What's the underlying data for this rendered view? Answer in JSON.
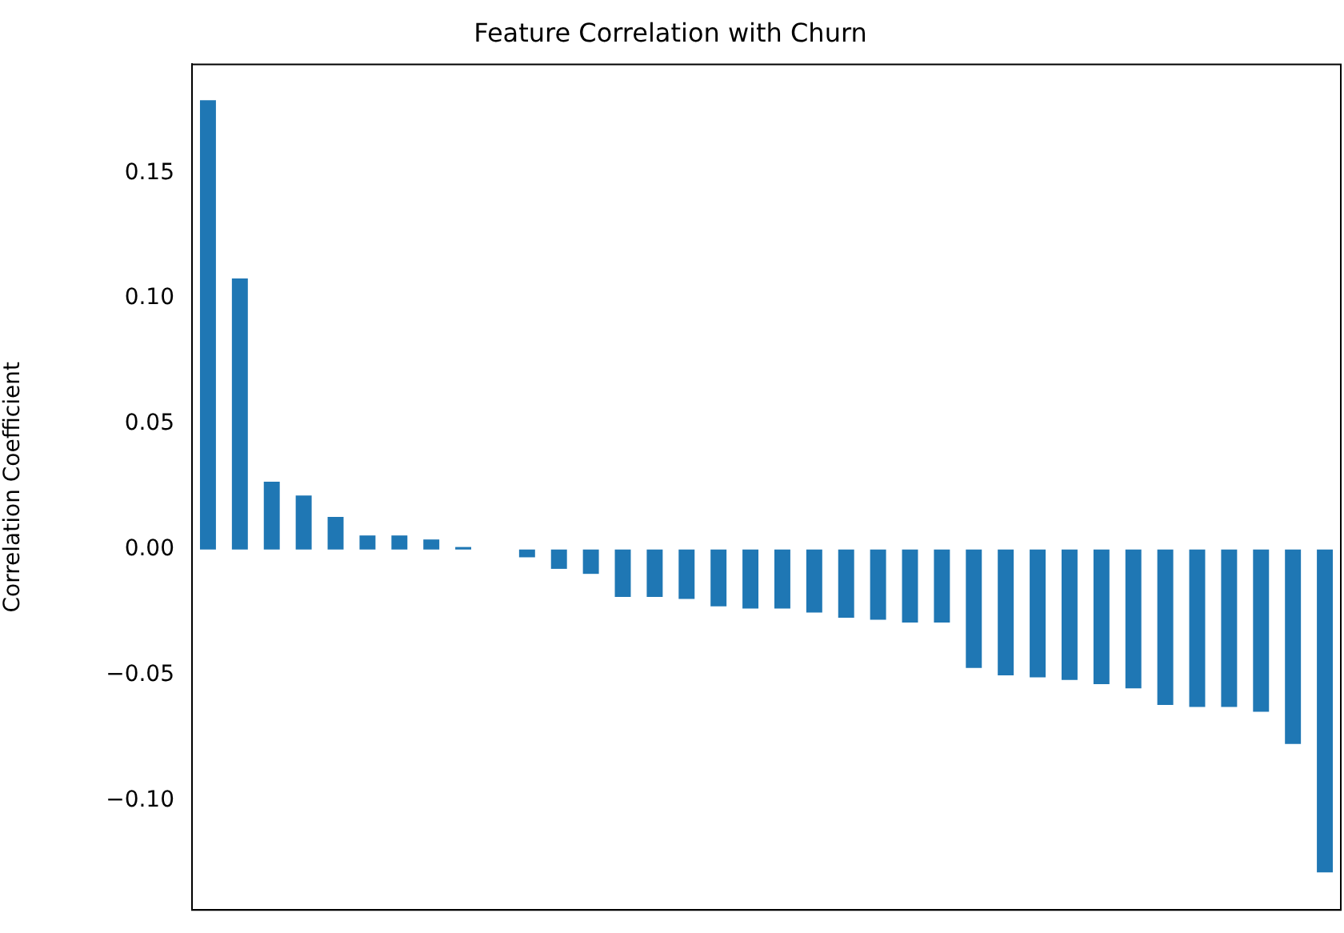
{
  "chart_data": {
    "type": "bar",
    "title": "Feature Correlation with Churn",
    "ylabel": "Correlation Coefficient",
    "categories": [
      null,
      null,
      null,
      null,
      null,
      null,
      null,
      null,
      null,
      null,
      null,
      null,
      null,
      null,
      null,
      null,
      null,
      null,
      null,
      null,
      null,
      null,
      null,
      null,
      null,
      null,
      null,
      null,
      null,
      null,
      null,
      null,
      null,
      null,
      null,
      null
    ],
    "values": [
      0.179,
      0.108,
      0.027,
      0.0215,
      0.013,
      0.0056,
      0.0056,
      0.004,
      0.001,
      0,
      -0.0031,
      -0.0077,
      -0.0097,
      -0.0189,
      -0.0189,
      -0.0197,
      -0.0226,
      -0.0235,
      -0.0235,
      -0.0251,
      -0.0272,
      -0.028,
      -0.0291,
      -0.0291,
      -0.0472,
      -0.0501,
      -0.0509,
      -0.052,
      -0.0536,
      -0.0553,
      -0.0619,
      -0.0627,
      -0.0627,
      -0.0646,
      -0.0775,
      -0.1286
    ],
    "color": "#1f77b4",
    "ylim": [
      -0.1436,
      0.1933
    ],
    "yticks": [
      {
        "value": -0.1,
        "label": "−0.10"
      },
      {
        "value": -0.05,
        "label": "−0.05"
      },
      {
        "value": 0,
        "label": "0.00"
      },
      {
        "value": 0.05,
        "label": "0.05"
      },
      {
        "value": 0.1,
        "label": "0.10"
      },
      {
        "value": 0.15,
        "label": "0.15"
      }
    ],
    "tick_labels": "y",
    "grid": false,
    "legend": false
  }
}
